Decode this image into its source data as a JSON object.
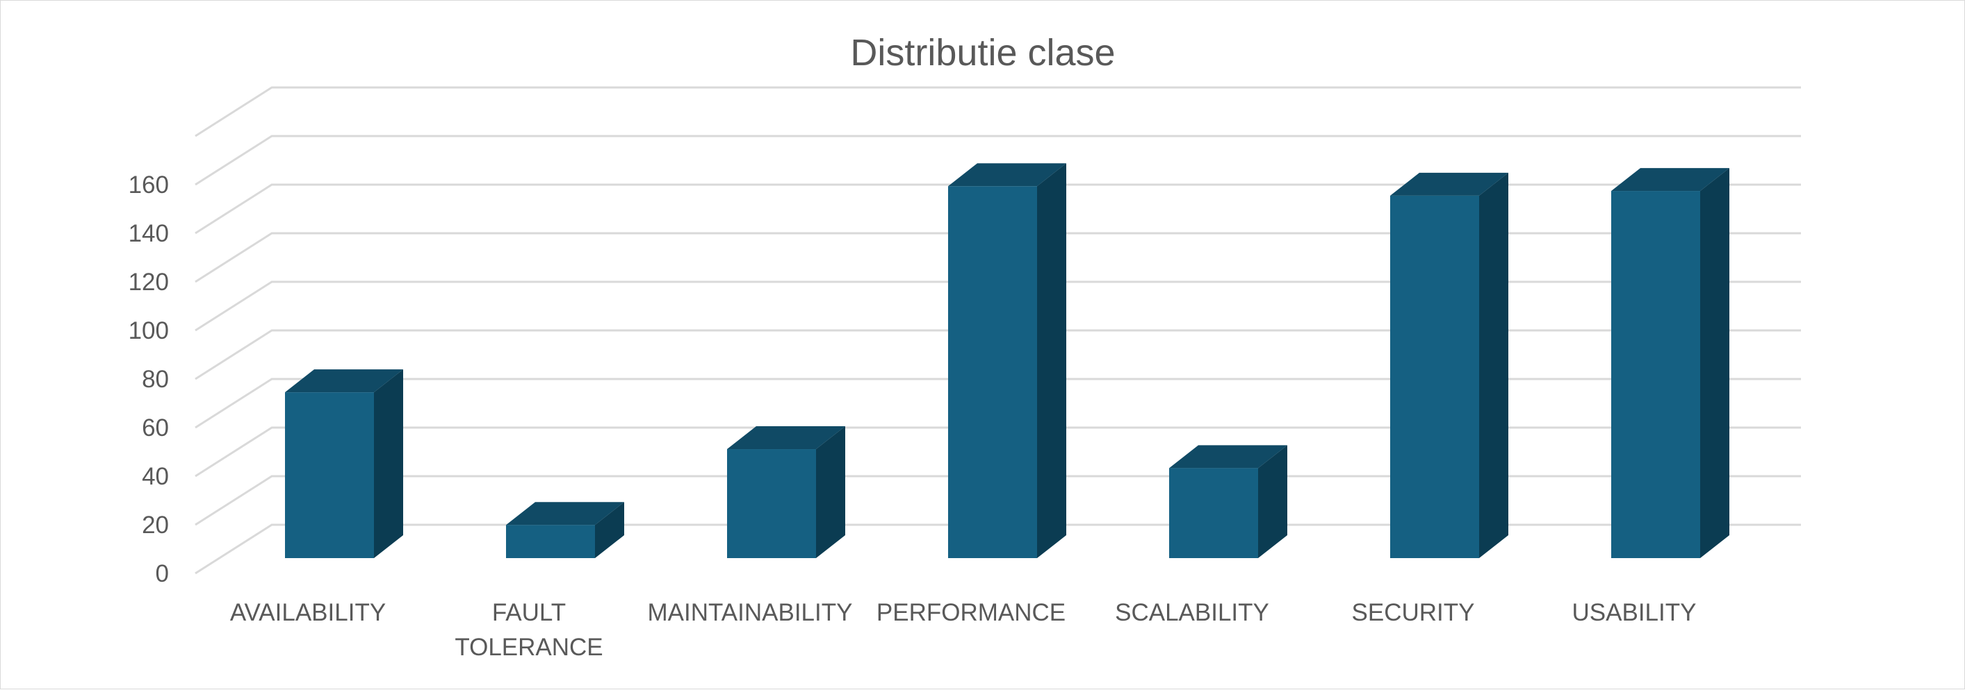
{
  "chart_data": {
    "type": "bar",
    "style": "3d-column",
    "title": "Distributie clase",
    "xlabel": "",
    "ylabel": "",
    "categories": [
      [
        "AVAILABILITY"
      ],
      [
        "FAULT",
        "TOLERANCE"
      ],
      [
        "MAINTAINABILITY"
      ],
      [
        "PERFORMANCE"
      ],
      [
        "SCALABILITY"
      ],
      [
        "SECURITY"
      ],
      [
        "USABILITY"
      ]
    ],
    "values": [
      70,
      14,
      46,
      157,
      38,
      153,
      155
    ],
    "ylim": [
      0,
      160
    ],
    "yticks": [
      "0",
      "20",
      "40",
      "60",
      "80",
      "100",
      "120",
      "140",
      "160"
    ],
    "grid": true,
    "legend": "none",
    "colors": {
      "bar_front": "#156082",
      "bar_top": "#104a65",
      "bar_side": "#0b3c52",
      "grid": "#d9d9d9",
      "text": "#595959"
    }
  }
}
